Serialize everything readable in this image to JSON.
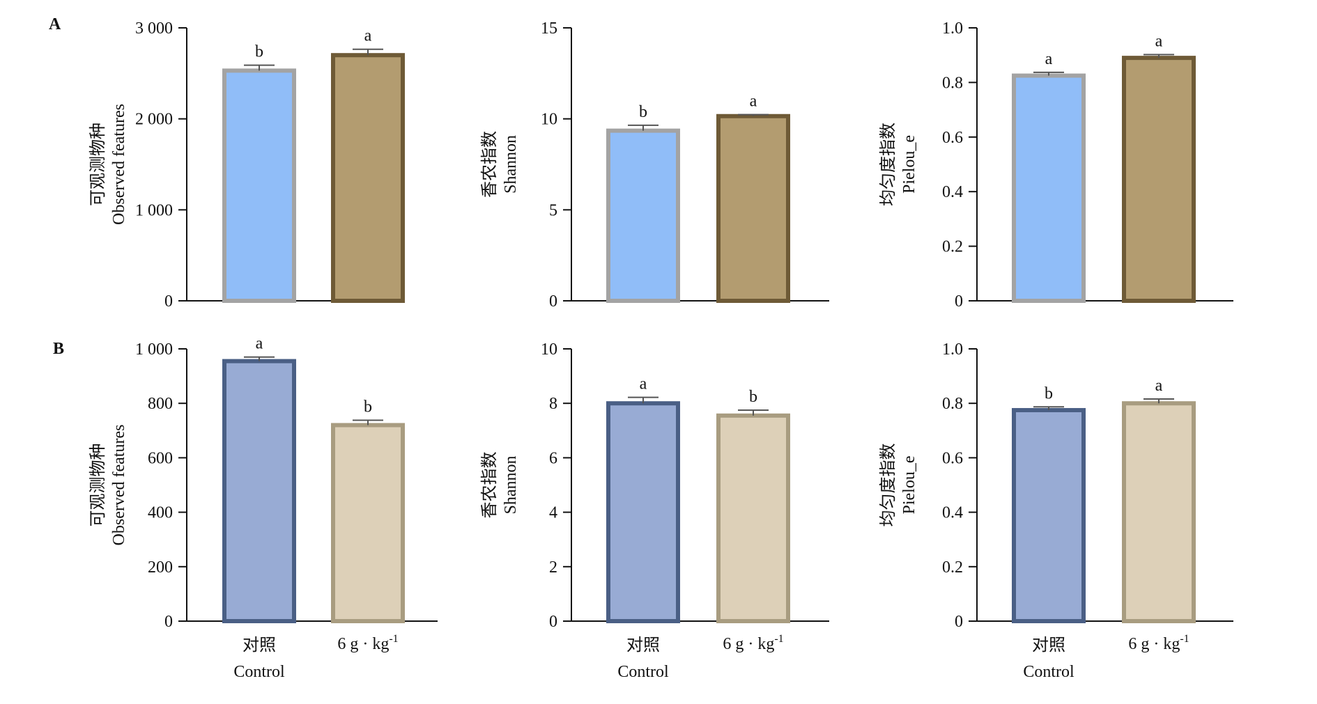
{
  "figure": {
    "panel_letters": [
      "A",
      "B"
    ],
    "x_categories": [
      {
        "zh": "对照",
        "en": "Control"
      },
      {
        "zh": "6 g · kg",
        "sup": "-1",
        "en": ""
      }
    ]
  },
  "colors": {
    "A_control_fill": "#90bdf8",
    "A_control_edge": "#a3a3a3",
    "A_treat_fill": "#b39c70",
    "A_treat_edge": "#6e5a36",
    "B_control_fill": "#98abd4",
    "B_control_edge": "#4a5f85",
    "B_treat_fill": "#ddd0b8",
    "B_treat_edge": "#a89c80",
    "axis": "#111111",
    "error": "#555555"
  },
  "chart_data": [
    {
      "id": "A-observed",
      "row": "A",
      "type": "bar",
      "ylabel_zh": "可观测物种",
      "ylabel_en": "Observed features",
      "ylim": [
        0,
        3000
      ],
      "yticks": [
        0,
        1000,
        2000,
        3000
      ],
      "ytick_labels": [
        "0",
        "1 000",
        "2 000",
        "3 000"
      ],
      "categories": [
        "对照 Control",
        "6 g · kg-1"
      ],
      "values": [
        2530,
        2700
      ],
      "errors": [
        60,
        65
      ],
      "significance": [
        "b",
        "a"
      ]
    },
    {
      "id": "A-shannon",
      "row": "A",
      "type": "bar",
      "ylabel_zh": "香农指数",
      "ylabel_en": "Shannon",
      "ylim": [
        0,
        15
      ],
      "yticks": [
        0,
        5,
        10,
        15
      ],
      "ytick_labels": [
        "0",
        "5",
        "10",
        "15"
      ],
      "categories": [
        "对照 Control",
        "6 g · kg-1"
      ],
      "values": [
        9.35,
        10.15
      ],
      "errors": [
        0.3,
        0.08
      ],
      "significance": [
        "b",
        "a"
      ]
    },
    {
      "id": "A-pielou",
      "row": "A",
      "type": "bar",
      "ylabel_zh": "均匀度指数",
      "ylabel_en": "Pielou_e",
      "ylim": [
        0,
        1.0
      ],
      "yticks": [
        0,
        0.2,
        0.4,
        0.6,
        0.8,
        1.0
      ],
      "ytick_labels": [
        "0",
        "0.2",
        "0.4",
        "0.6",
        "0.8",
        "1.0"
      ],
      "categories": [
        "对照 Control",
        "6 g · kg-1"
      ],
      "values": [
        0.825,
        0.89
      ],
      "errors": [
        0.012,
        0.012
      ],
      "significance": [
        "a",
        "a"
      ]
    },
    {
      "id": "B-observed",
      "row": "B",
      "type": "bar",
      "ylabel_zh": "可观测物种",
      "ylabel_en": "Observed features",
      "ylim": [
        0,
        1000
      ],
      "yticks": [
        0,
        200,
        400,
        600,
        800,
        1000
      ],
      "ytick_labels": [
        "0",
        "200",
        "400",
        "600",
        "800",
        "1 000"
      ],
      "categories": [
        "对照 Control",
        "6 g · kg-1"
      ],
      "values": [
        955,
        720
      ],
      "errors": [
        15,
        18
      ],
      "significance": [
        "a",
        "b"
      ]
    },
    {
      "id": "B-shannon",
      "row": "B",
      "type": "bar",
      "ylabel_zh": "香农指数",
      "ylabel_en": "Shannon",
      "ylim": [
        0,
        10
      ],
      "yticks": [
        0,
        2,
        4,
        6,
        8,
        10
      ],
      "ytick_labels": [
        "0",
        "2",
        "4",
        "6",
        "8",
        "10"
      ],
      "categories": [
        "对照 Control",
        "6 g · kg-1"
      ],
      "values": [
        8.0,
        7.55
      ],
      "errors": [
        0.22,
        0.2
      ],
      "significance": [
        "a",
        "b"
      ]
    },
    {
      "id": "B-pielou",
      "row": "B",
      "type": "bar",
      "ylabel_zh": "均匀度指数",
      "ylabel_en": "Pielou_e",
      "ylim": [
        0,
        1.0
      ],
      "yticks": [
        0,
        0.2,
        0.4,
        0.6,
        0.8,
        1.0
      ],
      "ytick_labels": [
        "0",
        "0.2",
        "0.4",
        "0.6",
        "0.8",
        "1.0"
      ],
      "categories": [
        "对照 Control",
        "6 g · kg-1"
      ],
      "values": [
        0.775,
        0.8
      ],
      "errors": [
        0.012,
        0.016
      ],
      "significance": [
        "b",
        "a"
      ]
    }
  ]
}
